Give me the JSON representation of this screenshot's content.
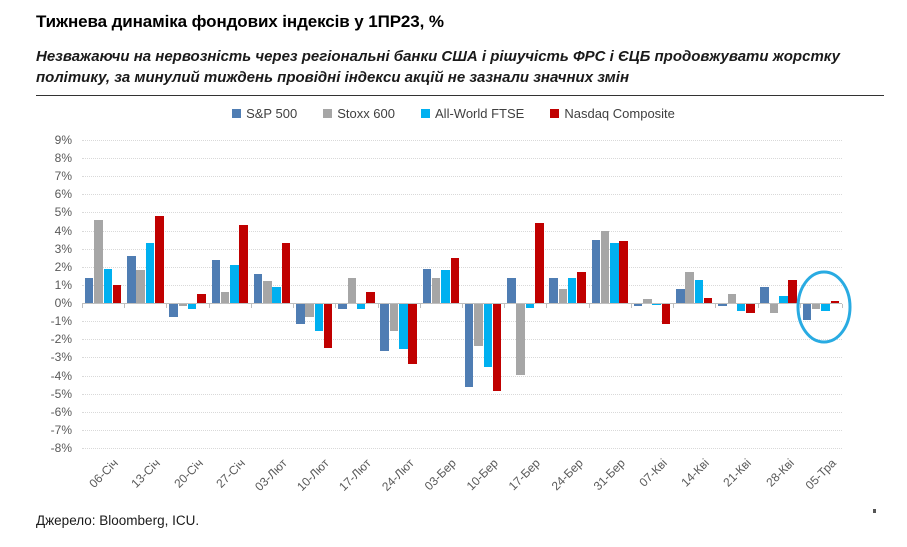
{
  "title": "Тижнева динаміка фондових індексів у 1ПР23, %",
  "subtitle": "Незважаючи на нервозність через регіональні банки США і рішучість ФРС і ЄЦБ продовжувати жорстку політику, за минулий тиждень провідні індекси акцій не зазнали значних змін",
  "source": "Джерело: Bloomberg, ICU.",
  "chart_data": {
    "type": "bar",
    "categories": [
      "06-Січ",
      "13-Січ",
      "20-Січ",
      "27-Січ",
      "03-Лют",
      "10-Лют",
      "17-Лют",
      "24-Лют",
      "03-Бер",
      "10-Бер",
      "17-Бер",
      "24-Бер",
      "31-Бер",
      "07-Кві",
      "14-Кві",
      "21-Кві",
      "28-Кві",
      "05-Тра"
    ],
    "series": [
      {
        "name": "S&P 500",
        "color": "#4F7DB3",
        "values": [
          1.4,
          2.6,
          -0.7,
          2.4,
          1.6,
          -1.1,
          -0.3,
          -2.6,
          1.9,
          -4.6,
          1.4,
          1.4,
          3.5,
          -0.1,
          0.8,
          -0.1,
          0.9,
          -0.9
        ]
      },
      {
        "name": "Stoxx 600",
        "color": "#A6A6A6",
        "values": [
          4.6,
          1.8,
          -0.1,
          0.6,
          1.2,
          -0.7,
          1.4,
          -1.5,
          1.4,
          -2.3,
          -3.9,
          0.8,
          4.0,
          0.25,
          1.7,
          0.5,
          -0.5,
          -0.3
        ]
      },
      {
        "name": "All-World FTSE",
        "color": "#00B0F0",
        "values": [
          1.9,
          3.3,
          -0.3,
          2.1,
          0.9,
          -1.5,
          -0.3,
          -2.5,
          1.8,
          -3.5,
          -0.2,
          1.4,
          3.3,
          -0.05,
          1.25,
          -0.4,
          0.4,
          -0.4
        ]
      },
      {
        "name": "Nasdaq Composite",
        "color": "#C00000",
        "values": [
          1.0,
          4.8,
          0.5,
          4.3,
          3.3,
          -2.4,
          0.6,
          -3.3,
          2.5,
          -4.8,
          4.4,
          1.7,
          3.4,
          -1.1,
          0.3,
          -0.5,
          1.3,
          0.1
        ]
      }
    ],
    "ylim": [
      -8,
      9
    ],
    "ytick_step": 1,
    "ytick_suffix": "%",
    "grid": "dotted horizontal",
    "legend_position": "top",
    "annotation": {
      "type": "ellipse",
      "category": "05-Тра",
      "color": "#29ABE2"
    }
  }
}
